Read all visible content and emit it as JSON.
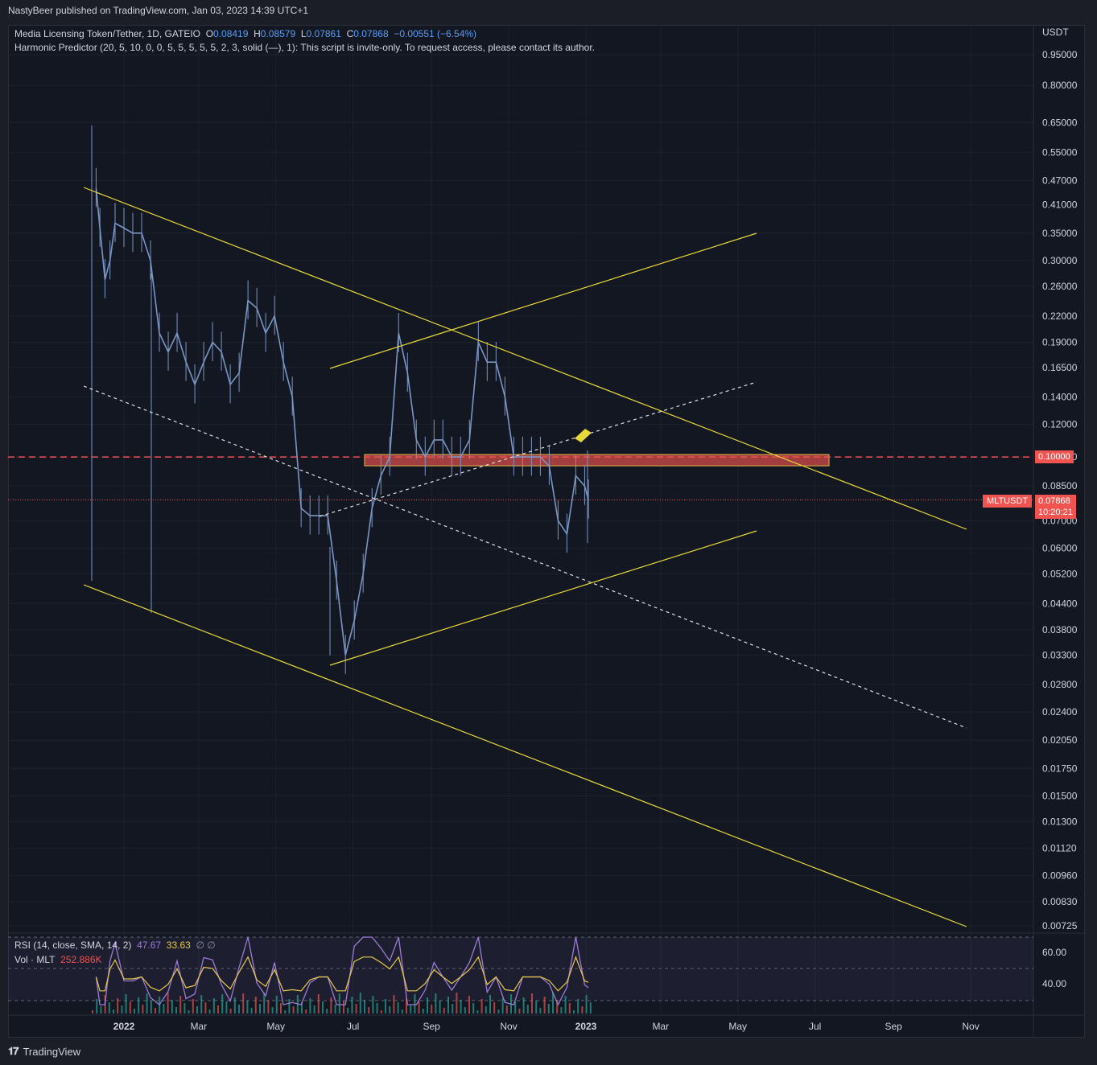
{
  "header": {
    "published": "NastyBeer published on TradingView.com, Jan 03, 2023 14:39 UTC+1"
  },
  "legend": {
    "symbol": "Media Licensing Token/Tether, 1D, GATEIO",
    "o_label": "O",
    "o_value": "0.08419",
    "h_label": "H",
    "h_value": "0.08579",
    "l_label": "L",
    "l_value": "0.07861",
    "c_label": "C",
    "c_value": "0.07868",
    "change": "−0.00551 (−6.54%)",
    "indicator": "Harmonic Predictor (20, 5, 10, 0, 0, 5, 5, 5, 5, 5, 2, 3, solid (—), 1): This script is invite-only. To request access, please contact its author.",
    "rsi_label": "RSI (14, close, SMA, 14, 2)",
    "rsi_value": "47.67",
    "rsi_sma_value": "33.63",
    "rsi_extra": "∅ ∅",
    "vol_label": "Vol · MLT",
    "vol_value": "252.886K"
  },
  "price_axis": {
    "currency": "USDT",
    "ticks": [
      "0.95000",
      "0.80000",
      "0.65000",
      "0.55000",
      "0.47000",
      "0.41000",
      "0.35000",
      "0.30000",
      "0.26000",
      "0.22000",
      "0.19000",
      "0.16500",
      "0.14000",
      "0.12000",
      "0.10000",
      "0.08500",
      "0.07000",
      "0.06000",
      "0.05200",
      "0.04400",
      "0.03800",
      "0.03300",
      "0.02800",
      "0.02400",
      "0.02050",
      "0.01750",
      "0.01500",
      "0.01300",
      "0.01120",
      "0.00960",
      "0.00830",
      "0.00725"
    ],
    "current_ticker": "MLTUSDT",
    "current_price": "0.07868",
    "countdown": "10:20:21",
    "level_label": "0.10000"
  },
  "rsi_axis": {
    "ticks": [
      "60.00",
      "40.00"
    ]
  },
  "time_axis": {
    "ticks": [
      "2022",
      "Mar",
      "May",
      "Jul",
      "Sep",
      "Nov",
      "2023",
      "Mar",
      "May",
      "Jul",
      "Sep",
      "Nov"
    ]
  },
  "footer": {
    "brand": "TradingView"
  },
  "colors": {
    "background": "#131722",
    "candle": "#7b96c4",
    "trendline": "#e8d93a",
    "dashed": "#e0e0e0",
    "resistance_zone": "#f05350",
    "rsi": "#9c7cd7",
    "rsi_sma": "#e8c94a",
    "vol_up": "#26a69a",
    "vol_down": "#ef5350"
  },
  "chart_data": {
    "type": "line",
    "title": "Media Licensing Token/Tether, 1D, GATEIO",
    "scale": "log",
    "ylim": [
      0.007,
      1.0
    ],
    "xlim": [
      "2021-11-20",
      "2023-11-30"
    ],
    "series": [
      {
        "name": "MLTUSDT",
        "x": [
          "2021-12-10",
          "2021-12-13",
          "2021-12-17",
          "2021-12-21",
          "2021-12-25",
          "2022-01-01",
          "2022-01-08",
          "2022-01-15",
          "2022-01-22",
          "2022-01-29",
          "2022-02-05",
          "2022-02-12",
          "2022-02-19",
          "2022-02-26",
          "2022-03-05",
          "2022-03-12",
          "2022-03-19",
          "2022-03-26",
          "2022-04-02",
          "2022-04-09",
          "2022-04-16",
          "2022-04-23",
          "2022-04-30",
          "2022-05-07",
          "2022-05-14",
          "2022-05-21",
          "2022-05-28",
          "2022-06-04",
          "2022-06-11",
          "2022-06-18",
          "2022-06-25",
          "2022-07-02",
          "2022-07-09",
          "2022-07-16",
          "2022-07-23",
          "2022-07-30",
          "2022-08-06",
          "2022-08-13",
          "2022-08-20",
          "2022-08-27",
          "2022-09-03",
          "2022-09-10",
          "2022-09-17",
          "2022-09-24",
          "2022-10-01",
          "2022-10-08",
          "2022-10-15",
          "2022-10-22",
          "2022-10-29",
          "2022-11-05",
          "2022-11-12",
          "2022-11-19",
          "2022-11-26",
          "2022-12-03",
          "2022-12-10",
          "2022-12-17",
          "2022-12-24",
          "2022-12-31",
          "2023-01-03"
        ],
        "values": [
          0.45,
          0.36,
          0.27,
          0.3,
          0.37,
          0.36,
          0.35,
          0.35,
          0.3,
          0.2,
          0.18,
          0.2,
          0.17,
          0.15,
          0.17,
          0.19,
          0.18,
          0.15,
          0.16,
          0.24,
          0.23,
          0.2,
          0.22,
          0.17,
          0.14,
          0.075,
          0.072,
          0.072,
          0.072,
          0.05,
          0.033,
          0.04,
          0.052,
          0.075,
          0.09,
          0.1,
          0.2,
          0.16,
          0.11,
          0.1,
          0.11,
          0.11,
          0.1,
          0.1,
          0.11,
          0.19,
          0.17,
          0.17,
          0.14,
          0.1,
          0.1,
          0.1,
          0.1,
          0.095,
          0.07,
          0.065,
          0.09,
          0.085,
          0.07868
        ]
      }
    ],
    "levels": [
      {
        "name": "resistance",
        "value": 0.1
      }
    ]
  }
}
